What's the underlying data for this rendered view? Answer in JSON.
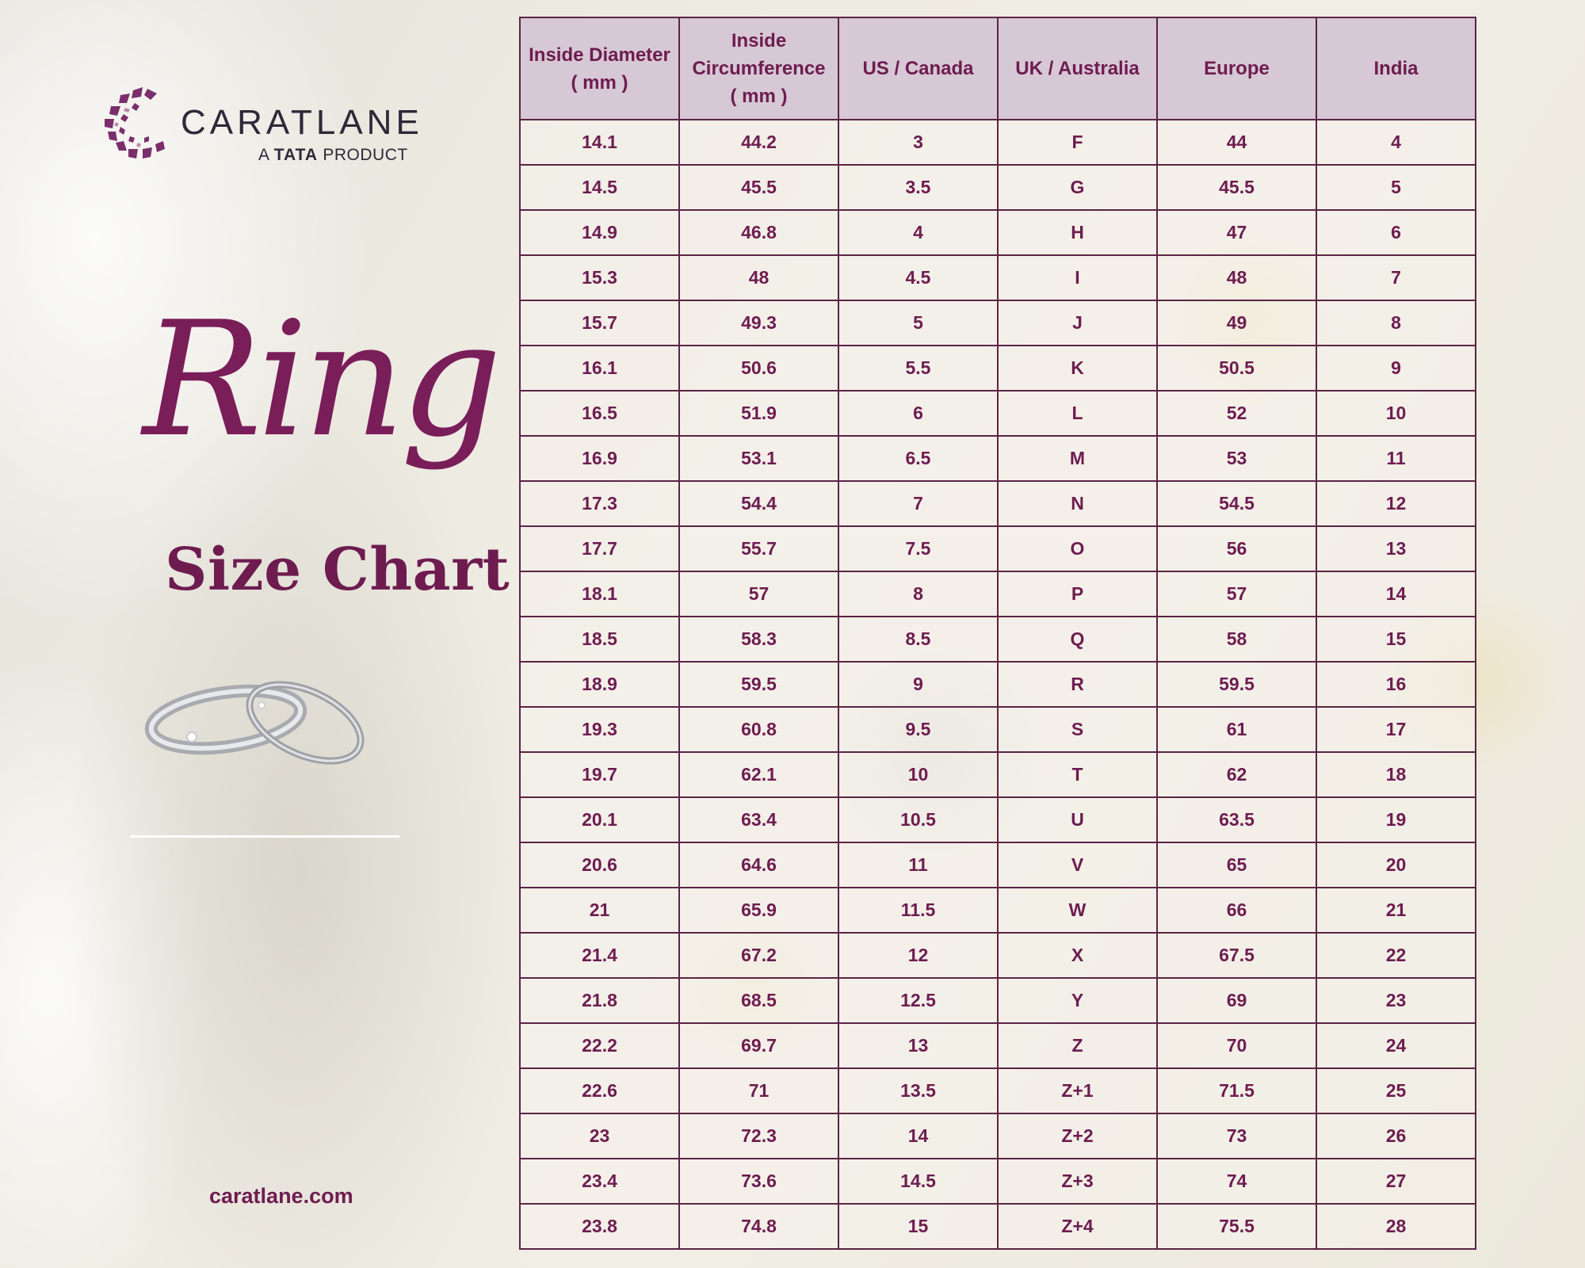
{
  "brand": {
    "name": "CARATLANE",
    "tagline_prefix": "A",
    "tagline_brand": "TATA",
    "tagline_suffix": "PRODUCT",
    "website": "caratlane.com"
  },
  "title": {
    "script": "Ring",
    "main": "Size Chart"
  },
  "colors": {
    "accent": "#6e1c50",
    "header_bg": "#d4c4d2",
    "border": "#5a2445"
  },
  "table": {
    "headers": [
      [
        "Inside Diameter",
        "( mm )"
      ],
      [
        "Inside",
        "Circumference",
        "( mm )"
      ],
      [
        "US / Canada"
      ],
      [
        "UK / Australia"
      ],
      [
        "Europe"
      ],
      [
        "India"
      ]
    ],
    "rows": [
      [
        "14.1",
        "44.2",
        "3",
        "F",
        "44",
        "4"
      ],
      [
        "14.5",
        "45.5",
        "3.5",
        "G",
        "45.5",
        "5"
      ],
      [
        "14.9",
        "46.8",
        "4",
        "H",
        "47",
        "6"
      ],
      [
        "15.3",
        "48",
        "4.5",
        "I",
        "48",
        "7"
      ],
      [
        "15.7",
        "49.3",
        "5",
        "J",
        "49",
        "8"
      ],
      [
        "16.1",
        "50.6",
        "5.5",
        "K",
        "50.5",
        "9"
      ],
      [
        "16.5",
        "51.9",
        "6",
        "L",
        "52",
        "10"
      ],
      [
        "16.9",
        "53.1",
        "6.5",
        "M",
        "53",
        "11"
      ],
      [
        "17.3",
        "54.4",
        "7",
        "N",
        "54.5",
        "12"
      ],
      [
        "17.7",
        "55.7",
        "7.5",
        "O",
        "56",
        "13"
      ],
      [
        "18.1",
        "57",
        "8",
        "P",
        "57",
        "14"
      ],
      [
        "18.5",
        "58.3",
        "8.5",
        "Q",
        "58",
        "15"
      ],
      [
        "18.9",
        "59.5",
        "9",
        "R",
        "59.5",
        "16"
      ],
      [
        "19.3",
        "60.8",
        "9.5",
        "S",
        "61",
        "17"
      ],
      [
        "19.7",
        "62.1",
        "10",
        "T",
        "62",
        "18"
      ],
      [
        "20.1",
        "63.4",
        "10.5",
        "U",
        "63.5",
        "19"
      ],
      [
        "20.6",
        "64.6",
        "11",
        "V",
        "65",
        "20"
      ],
      [
        "21",
        "65.9",
        "11.5",
        "W",
        "66",
        "21"
      ],
      [
        "21.4",
        "67.2",
        "12",
        "X",
        "67.5",
        "22"
      ],
      [
        "21.8",
        "68.5",
        "12.5",
        "Y",
        "69",
        "23"
      ],
      [
        "22.2",
        "69.7",
        "13",
        "Z",
        "70",
        "24"
      ],
      [
        "22.6",
        "71",
        "13.5",
        "Z+1",
        "71.5",
        "25"
      ],
      [
        "23",
        "72.3",
        "14",
        "Z+2",
        "73",
        "26"
      ],
      [
        "23.4",
        "73.6",
        "14.5",
        "Z+3",
        "74",
        "27"
      ],
      [
        "23.8",
        "74.8",
        "15",
        "Z+4",
        "75.5",
        "28"
      ]
    ]
  }
}
